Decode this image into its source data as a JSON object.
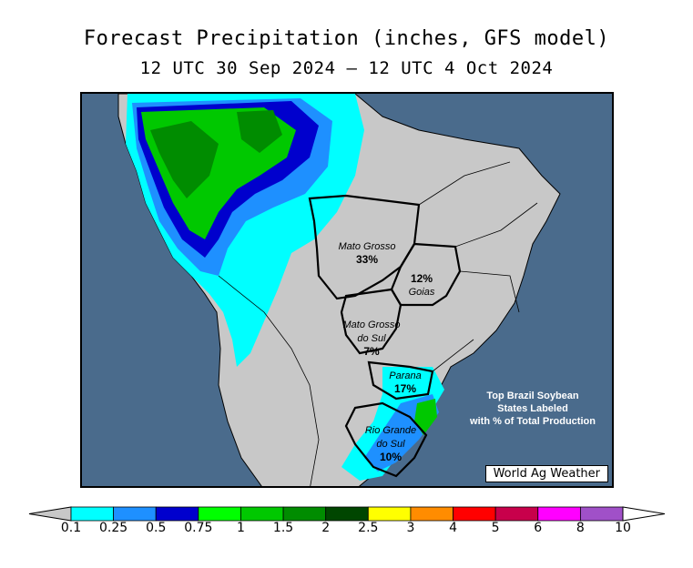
{
  "title": "Forecast Precipitation (inches, GFS model)",
  "subtitle": "12 UTC 30 Sep 2024 — 12 UTC 4 Oct 2024",
  "states": [
    {
      "name": "Mato Grosso",
      "pct": "33%"
    },
    {
      "name": "Goias",
      "pct": "12%"
    },
    {
      "name": "Mato Grosso do Sul",
      "name_line1": "Mato Grosso",
      "name_line2": "do Sul",
      "pct": "7%"
    },
    {
      "name": "Parana",
      "pct": "17%"
    },
    {
      "name": "Rio Grande do Sul",
      "name_line1": "Rio Grande",
      "name_line2": "do Sul",
      "pct": "10%"
    }
  ],
  "note_lines": [
    "Top Brazil Soybean",
    "States Labeled",
    "with % of Total Production"
  ],
  "credit": "World Ag Weather",
  "legend": {
    "ticks": [
      "0.1",
      "0.25",
      "0.5",
      "0.75",
      "1",
      "1.5",
      "2",
      "2.5",
      "3",
      "4",
      "5",
      "6",
      "8",
      "10"
    ],
    "colors": [
      "#00ffff",
      "#1e90ff",
      "#0000cd",
      "#00ff00",
      "#00c800",
      "#008c00",
      "#004600",
      "#ffff00",
      "#ff8c00",
      "#ff0000",
      "#c8004b",
      "#ff00ff",
      "#a050c8"
    ],
    "under_color": "#c8c8c8",
    "over_color": "#ffffff"
  },
  "colors": {
    "ocean": "#4a6b8c",
    "land": "#c8c8c8"
  }
}
